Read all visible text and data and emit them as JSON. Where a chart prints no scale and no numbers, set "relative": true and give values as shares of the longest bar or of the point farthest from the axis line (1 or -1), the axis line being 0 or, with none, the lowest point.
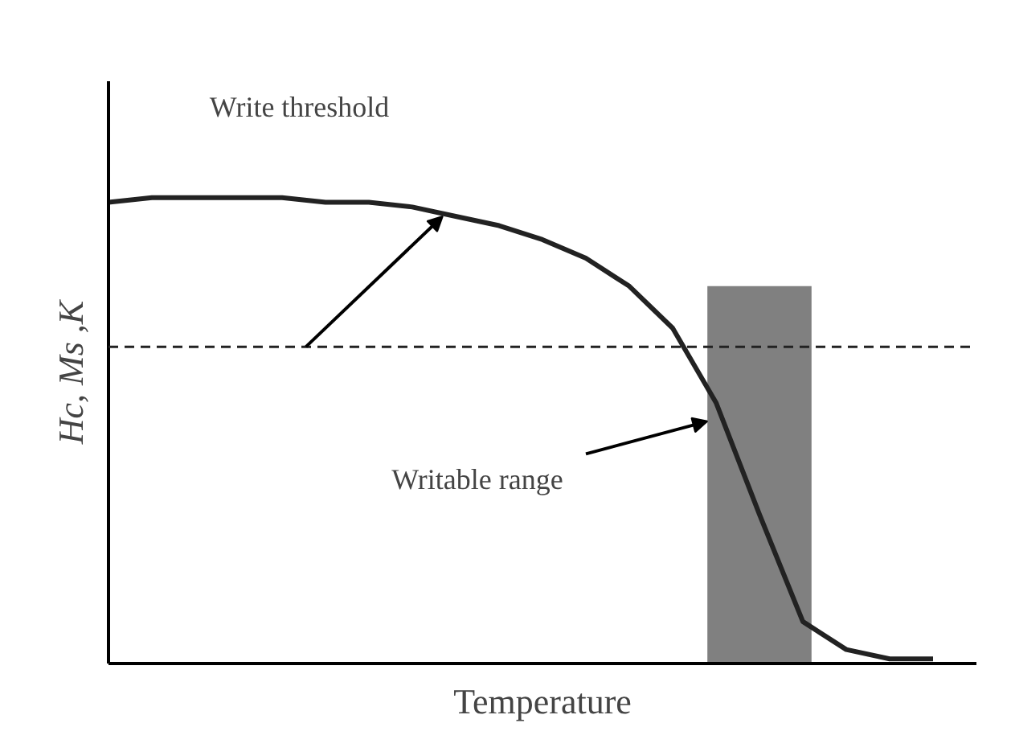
{
  "chart_data": {
    "type": "line",
    "relative": true,
    "xlabel": "Temperature",
    "ylabel": "Hc, Ms ,K",
    "categories": [
      null,
      null,
      null,
      null,
      null,
      null,
      null,
      null,
      null,
      null,
      null,
      null,
      null,
      null,
      null,
      null,
      null,
      null,
      null,
      null
    ],
    "series": [
      {
        "color": "#222222",
        "values": [
          0.99,
          1.0,
          1.0,
          1.0,
          1.0,
          0.99,
          0.99,
          0.98,
          0.96,
          0.94,
          0.91,
          0.87,
          0.81,
          0.72,
          0.56,
          0.32,
          0.09,
          0.03,
          0.01,
          0.01
        ]
      }
    ],
    "ref_lines": [
      {
        "axis": "y",
        "value": 0.68,
        "label": "Write threshold",
        "line_style": "dashed",
        "color": "#222222"
      }
    ],
    "annotations": [
      "Writable range"
    ],
    "grid": false,
    "tick_labels": false,
    "marker": "none",
    "line_style": "solid"
  }
}
